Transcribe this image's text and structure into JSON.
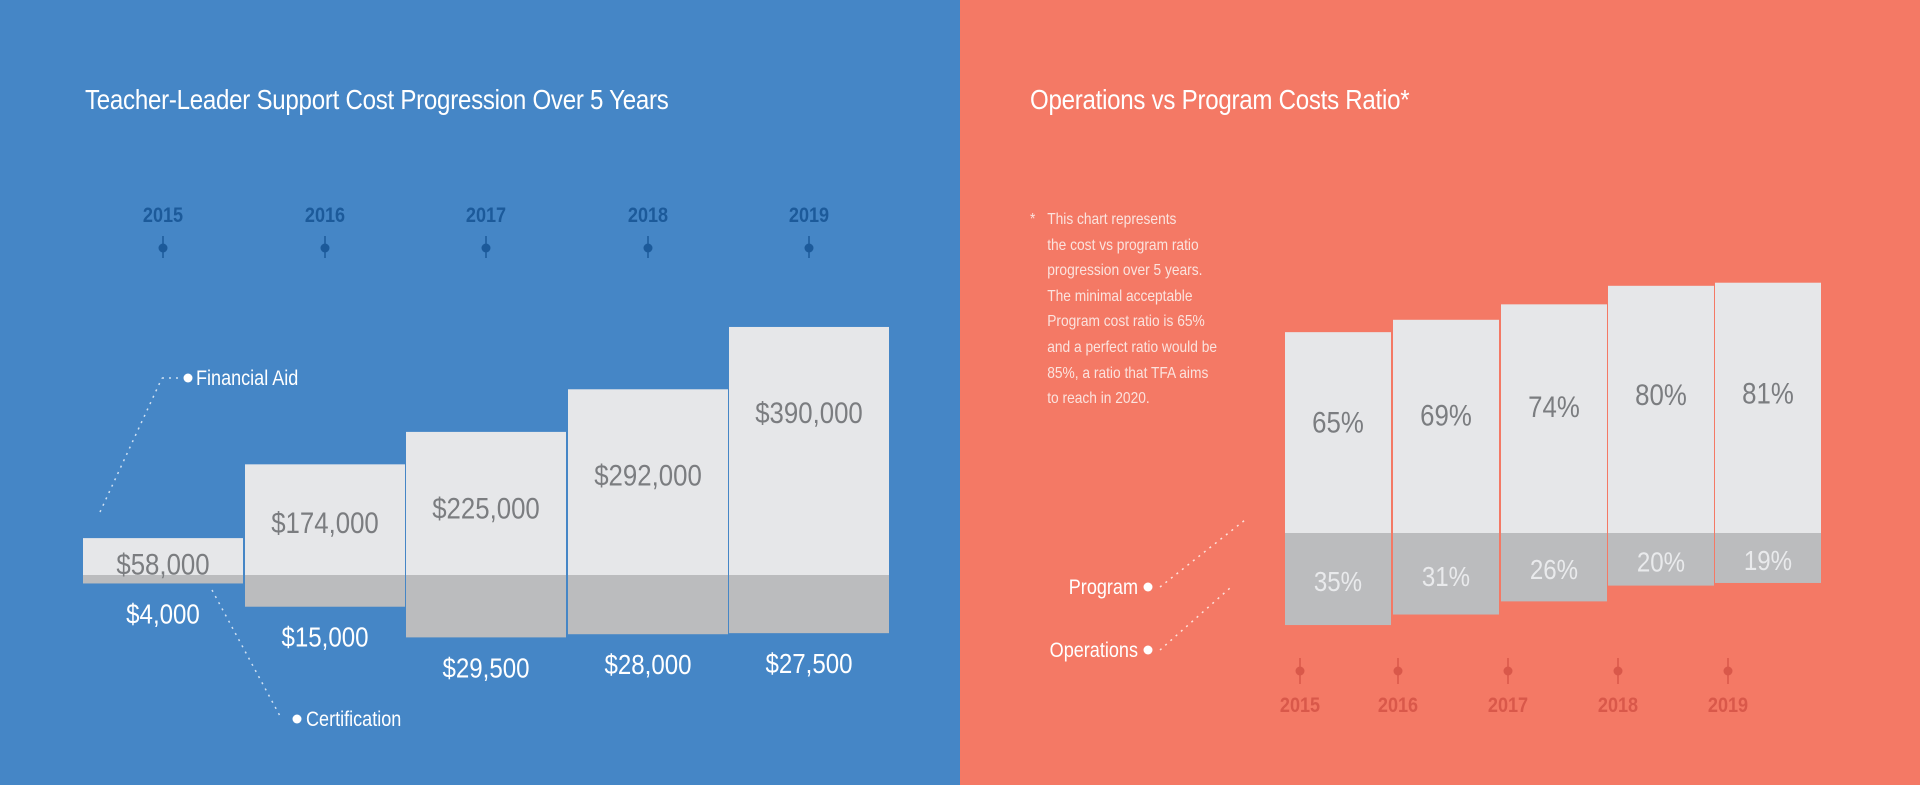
{
  "chart_data": [
    {
      "type": "bar",
      "title": "Teacher-Leader Support Cost Progression Over 5 Years",
      "categories": [
        "2015",
        "2016",
        "2017",
        "2018",
        "2019"
      ],
      "series": [
        {
          "name": "Financial Aid",
          "values": [
            58000,
            174000,
            225000,
            292000,
            390000
          ],
          "labels": [
            "$58,000",
            "$174,000",
            "$225,000",
            "$292,000",
            "$390,000"
          ]
        },
        {
          "name": "Certification",
          "values": [
            4000,
            15000,
            29500,
            28000,
            27500
          ],
          "labels": [
            "$4,000",
            "$15,000",
            "$29,500",
            "$28,000",
            "$27,500"
          ]
        }
      ],
      "colors": {
        "background": "#4586c6",
        "upper": "#e6e7e9",
        "lower": "#bbbcbe",
        "year": "#1c5a9a",
        "label_dark": "#7b7d80",
        "label_light": "#ffffff"
      }
    },
    {
      "type": "bar",
      "title": "Operations vs Program Costs Ratio*",
      "categories": [
        "2015",
        "2016",
        "2017",
        "2018",
        "2019"
      ],
      "series": [
        {
          "name": "Program",
          "values": [
            65,
            69,
            74,
            80,
            81
          ],
          "labels": [
            "65%",
            "69%",
            "74%",
            "80%",
            "81%"
          ]
        },
        {
          "name": "Operations",
          "values": [
            35,
            31,
            26,
            20,
            19
          ],
          "labels": [
            "35%",
            "31%",
            "26%",
            "20%",
            "19%"
          ]
        }
      ],
      "footnote": {
        "marker": "*",
        "lines": [
          "This chart represents",
          "the cost vs program ratio",
          "progression over 5 years.",
          "The minimal acceptable",
          "Program cost ratio is 65%",
          "and a perfect ratio would be",
          "85%, a ratio that TFA aims",
          "to reach in 2020."
        ]
      },
      "colors": {
        "background": "#f47965",
        "upper": "#e6e7e9",
        "lower": "#bbbcbe",
        "year": "#d9584a",
        "label": "#7b7d80",
        "label_on_lower": "#e9eaec"
      }
    }
  ]
}
